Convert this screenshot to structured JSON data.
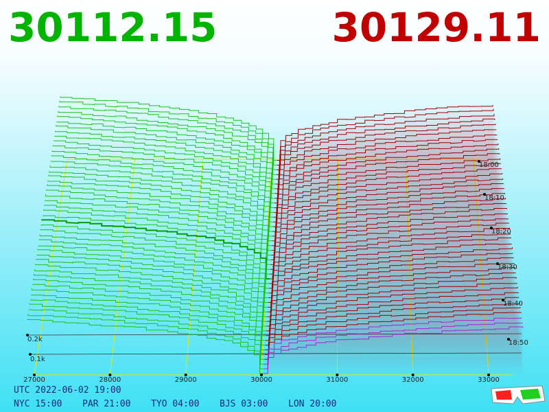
{
  "bid_price": "30112.15",
  "ask_price": "30129.11",
  "price_axis": [
    "27000",
    "28000",
    "29000",
    "30000",
    "31000",
    "32000",
    "33000"
  ],
  "time_axis": [
    "18:00",
    "18:10",
    "18:20",
    "18:30",
    "18:40",
    "18:50"
  ],
  "depth_axis": [
    "0.2k",
    "0.1k"
  ],
  "clock": {
    "utc": "UTC 2022-06-02 19:00",
    "zones": [
      "NYC 15:00",
      "PAR 21:00",
      "TYO 04:00",
      "BJS 03:00",
      "LON 20:00"
    ]
  }
}
